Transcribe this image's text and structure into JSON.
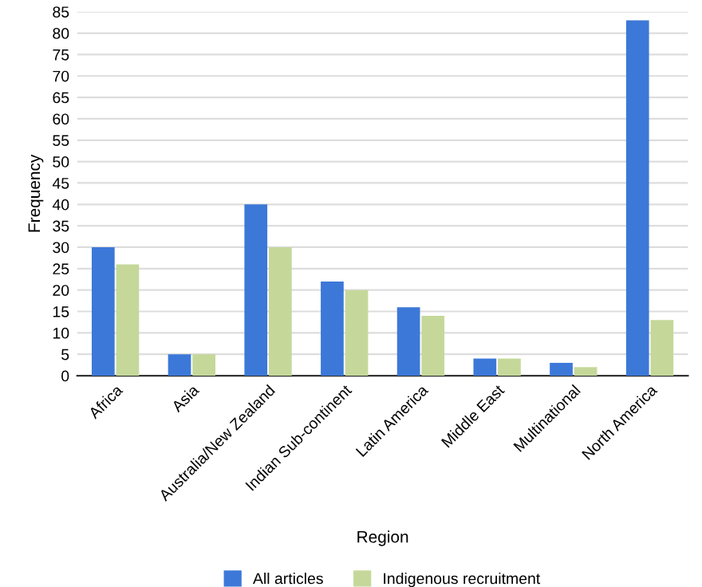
{
  "chart_data": {
    "type": "bar",
    "xlabel": "Region",
    "ylabel": "Frequency",
    "categories": [
      "Africa",
      "Asia",
      "Australia/New Zealand",
      "Indian Sub-continent",
      "Latin America",
      "Middle East",
      "Multinational",
      "North America"
    ],
    "series": [
      {
        "name": "All articles",
        "color": "#3c78d8",
        "values": [
          30,
          5,
          40,
          22,
          16,
          4,
          3,
          83
        ]
      },
      {
        "name": "Indigenous recruitment",
        "color": "#c5d89a",
        "values": [
          26,
          5,
          30,
          20,
          14,
          4,
          2,
          13
        ]
      }
    ],
    "ylim": [
      0,
      85
    ],
    "yticks": [
      0,
      5,
      10,
      15,
      20,
      25,
      30,
      35,
      40,
      45,
      50,
      55,
      60,
      65,
      70,
      75,
      80,
      85
    ],
    "grid": "y",
    "legend": "bottom"
  }
}
